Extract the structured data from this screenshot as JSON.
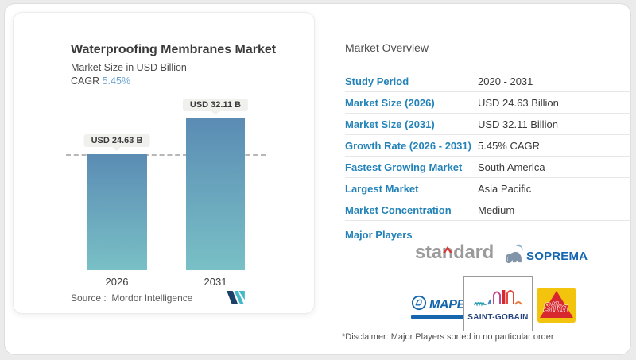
{
  "chart_card": {
    "title": "Waterproofing Membranes Market",
    "subtitle": "Market Size in USD Billion",
    "cagr_label": "CAGR",
    "cagr_value": "5.45%",
    "bars": [
      {
        "year": "2026",
        "label": "USD 24.63 B",
        "value": 24.63
      },
      {
        "year": "2031",
        "label": "USD 32.11 B",
        "value": 32.11
      }
    ],
    "source_label": "Source :",
    "source_value": "Mordor Intelligence"
  },
  "chart_data": {
    "type": "bar",
    "title": "Waterproofing Membranes Market",
    "ylabel": "Market Size in USD Billion",
    "categories": [
      "2026",
      "2031"
    ],
    "values": [
      24.63,
      32.11
    ],
    "data_labels": [
      "USD 24.63 B",
      "USD 32.11 B"
    ],
    "reference_line": 24.63,
    "cagr": "5.45%",
    "grid": false,
    "bar_gradient": [
      "#5b8cb4",
      "#79c0c6"
    ]
  },
  "overview": {
    "heading": "Market Overview",
    "rows": [
      {
        "label": "Study Period",
        "value": "2020 - 2031"
      },
      {
        "label": "Market Size (2026)",
        "value": "USD 24.63 Billion"
      },
      {
        "label": "Market Size (2031)",
        "value": "USD 32.11 Billion"
      },
      {
        "label": "Growth Rate (2026 - 2031)",
        "value": "5.45% CAGR"
      },
      {
        "label": "Fastest Growing Market",
        "value": "South America"
      },
      {
        "label": "Largest Market",
        "value": "Asia Pacific"
      },
      {
        "label": "Market Concentration",
        "value": "Medium"
      }
    ],
    "major_players_label": "Major Players",
    "disclaimer": "*Disclaimer: Major Players sorted in no particular order"
  },
  "logos": {
    "standard": {
      "pre": "sta",
      "mid": "n",
      "post": "dard",
      "full": "standard"
    },
    "soprema": "SOPREMA",
    "mapei": "MAPEI",
    "saint_gobain": "SAINT-GOBAIN",
    "sika": "Sika",
    "sika_reg": "®"
  },
  "colors": {
    "accent_blue": "#2383b8",
    "cagr_blue": "#6aa3cf",
    "bar_top": "#5b8cb4",
    "bar_bottom": "#79c0c6",
    "pill_bg": "#f0f0ed",
    "standard_gray": "#9b9b9b",
    "standard_red": "#d93a35",
    "soprema_blue": "#1768b3",
    "mapei_blue": "#1566ad",
    "saint_gobain_navy": "#24427c",
    "sika_yellow": "#f2c40d",
    "sika_red": "#d7282f",
    "mordor_navy": "#1c4068",
    "mordor_teal": "#44b8c9"
  }
}
